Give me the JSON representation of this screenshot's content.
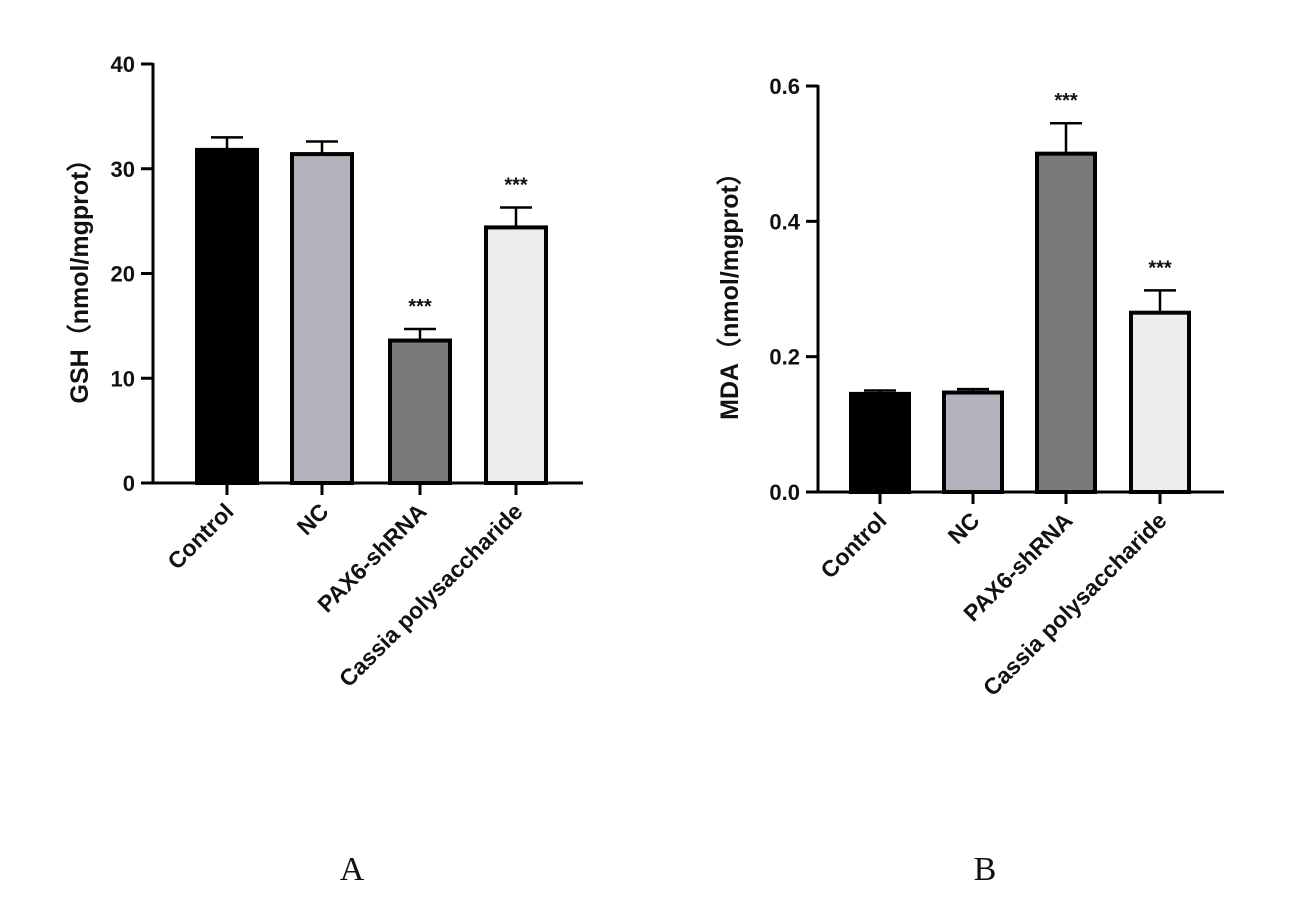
{
  "chart_data": [
    {
      "type": "bar",
      "panel_label": "A",
      "ylabel": "GSH（nmol/mgprot）",
      "categories": [
        "Control",
        "NC",
        "PAX6-shRNA",
        "Cassia polysaccharide"
      ],
      "values": [
        31.8,
        31.4,
        13.6,
        24.4
      ],
      "errors": [
        1.2,
        1.2,
        1.1,
        1.9
      ],
      "significance": [
        "",
        "",
        "***",
        "***"
      ],
      "ylim": [
        0,
        40
      ],
      "yticks": [
        0,
        10,
        20,
        30,
        40
      ],
      "ytick_labels": [
        "0",
        "10",
        "20",
        "30",
        "40"
      ],
      "bar_colors": [
        "#000000",
        "#b3b1bb",
        "#7a7a7a",
        "#ececec"
      ],
      "grid": false
    },
    {
      "type": "bar",
      "panel_label": "B",
      "ylabel": "MDA（nmol/mgprot）",
      "categories": [
        "Control",
        "NC",
        "PAX6-shRNA",
        "Cassia polysaccharide"
      ],
      "values": [
        0.145,
        0.147,
        0.5,
        0.265
      ],
      "errors": [
        0.005,
        0.005,
        0.045,
        0.033
      ],
      "significance": [
        "",
        "",
        "***",
        "***"
      ],
      "ylim": [
        0,
        0.6
      ],
      "yticks": [
        0,
        0.2,
        0.4,
        0.6
      ],
      "ytick_labels": [
        "0.0",
        "0.2",
        "0.4",
        "0.6"
      ],
      "bar_colors": [
        "#000000",
        "#b3b1bb",
        "#7a7a7a",
        "#ececec"
      ],
      "grid": false
    }
  ]
}
